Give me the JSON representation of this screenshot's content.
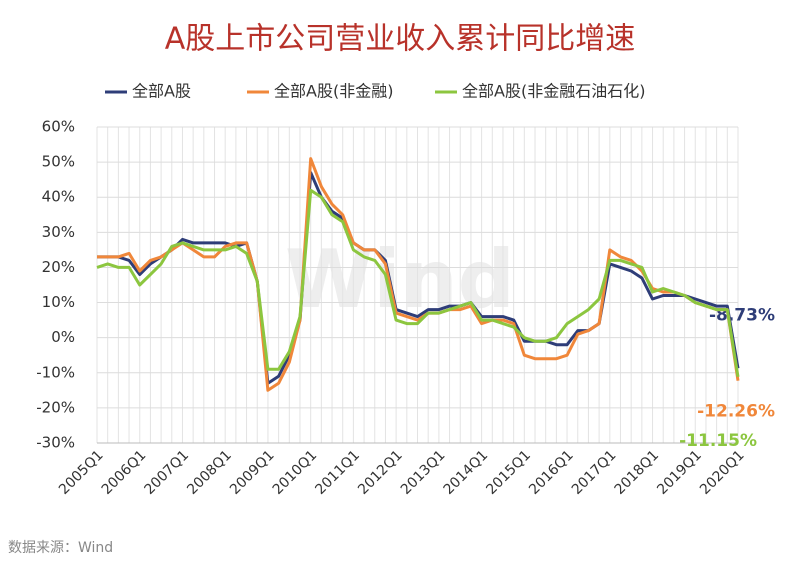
{
  "chart_data": {
    "type": "line",
    "title": "A股上市公司营业收入累计同比增速",
    "source": "数据来源：Wind",
    "watermark": "Wind",
    "categories": [
      "2005Q1",
      null,
      null,
      null,
      "2006Q1",
      null,
      null,
      null,
      "2007Q1",
      null,
      null,
      null,
      "2008Q1",
      null,
      null,
      null,
      "2009Q1",
      null,
      null,
      null,
      "2010Q1",
      null,
      null,
      null,
      "2011Q1",
      null,
      null,
      null,
      "2012Q1",
      null,
      null,
      null,
      "2013Q1",
      null,
      null,
      null,
      "2014Q1",
      null,
      null,
      null,
      "2015Q1",
      null,
      null,
      null,
      "2016Q1",
      null,
      null,
      null,
      "2017Q1",
      null,
      null,
      null,
      "2018Q1",
      null,
      null,
      null,
      "2019Q1",
      null,
      null,
      null,
      "2020Q1"
    ],
    "series": [
      {
        "name": "全部A股",
        "color": "#2e3d78",
        "values": [
          23,
          23,
          23,
          22,
          18,
          21,
          23,
          25,
          28,
          27,
          27,
          27,
          27,
          26,
          27,
          16,
          -13,
          -11,
          -5,
          5,
          47,
          40,
          36,
          34,
          27,
          25,
          25,
          22,
          8,
          7,
          6,
          8,
          8,
          9,
          9,
          10,
          6,
          6,
          6,
          5,
          -1,
          -1,
          -1,
          -2,
          -2,
          2,
          2,
          4,
          21,
          20,
          19,
          17,
          11,
          12,
          12,
          12,
          11,
          10,
          9,
          9,
          -8.73
        ],
        "value_labels": [
          null,
          null,
          null,
          null,
          null,
          null,
          null,
          null,
          null,
          null,
          null,
          null,
          null,
          null,
          null,
          null,
          null,
          null,
          null,
          null,
          null,
          null,
          null,
          null,
          null,
          null,
          null,
          null,
          null,
          null,
          null,
          null,
          null,
          null,
          null,
          null,
          null,
          null,
          null,
          null,
          null,
          null,
          null,
          null,
          null,
          null,
          null,
          null,
          null,
          null,
          null,
          null,
          null,
          null,
          null,
          null,
          null,
          null,
          null,
          null,
          "-8.73%"
        ]
      },
      {
        "name": "全部A股(非金融)",
        "color": "#f0873a",
        "values": [
          23,
          23,
          23,
          24,
          19,
          22,
          23,
          25,
          27,
          25,
          23,
          23,
          26,
          27,
          27,
          16,
          -15,
          -13,
          -7,
          5,
          51,
          43,
          38,
          35,
          27,
          25,
          25,
          21,
          7,
          6,
          5,
          7,
          7,
          8,
          8,
          9,
          4,
          5,
          5,
          4,
          -5,
          -6,
          -6,
          -6,
          -5,
          1,
          2,
          4,
          25,
          23,
          22,
          19,
          14,
          13,
          13,
          12,
          10,
          9,
          8,
          8,
          -12.26
        ],
        "value_labels": [
          null,
          null,
          null,
          null,
          null,
          null,
          null,
          null,
          null,
          null,
          null,
          null,
          null,
          null,
          null,
          null,
          null,
          null,
          null,
          null,
          null,
          null,
          null,
          null,
          null,
          null,
          null,
          null,
          null,
          null,
          null,
          null,
          null,
          null,
          null,
          null,
          null,
          null,
          null,
          null,
          null,
          null,
          null,
          null,
          null,
          null,
          null,
          null,
          null,
          null,
          null,
          null,
          null,
          null,
          null,
          null,
          null,
          null,
          null,
          null,
          "-12.26%"
        ]
      },
      {
        "name": "全部A股(非金融石油石化)",
        "color": "#8cc63f",
        "values": [
          20,
          21,
          20,
          20,
          15,
          18,
          21,
          26,
          27,
          26,
          25,
          25,
          25,
          26,
          24,
          16,
          -9,
          -9,
          -4,
          6,
          42,
          40,
          35,
          33,
          25,
          23,
          22,
          18,
          5,
          4,
          4,
          7,
          7,
          8,
          9,
          10,
          5,
          5,
          4,
          3,
          0,
          -1,
          -1,
          0,
          4,
          6,
          8,
          11,
          22,
          22,
          21,
          20,
          13,
          14,
          13,
          12,
          10,
          9,
          8,
          8,
          -11.15
        ],
        "value_labels": [
          null,
          null,
          null,
          null,
          null,
          null,
          null,
          null,
          null,
          null,
          null,
          null,
          null,
          null,
          null,
          null,
          null,
          null,
          null,
          null,
          null,
          null,
          null,
          null,
          null,
          null,
          null,
          null,
          null,
          null,
          null,
          null,
          null,
          null,
          null,
          null,
          null,
          null,
          null,
          null,
          null,
          null,
          null,
          null,
          null,
          null,
          null,
          null,
          null,
          null,
          null,
          null,
          null,
          null,
          null,
          null,
          null,
          null,
          null,
          null,
          "-11.15%"
        ]
      }
    ],
    "ylim": [
      -30,
      60
    ],
    "yticks": [
      {
        "value": -30,
        "label": "-30%"
      },
      {
        "value": -20,
        "label": "-20%"
      },
      {
        "value": -10,
        "label": "-10%"
      },
      {
        "value": 0,
        "label": "0%"
      },
      {
        "value": 10,
        "label": "10%"
      },
      {
        "value": 20,
        "label": "20%"
      },
      {
        "value": 30,
        "label": "30%"
      },
      {
        "value": 40,
        "label": "40%"
      },
      {
        "value": 50,
        "label": "50%"
      },
      {
        "value": 60,
        "label": "60%"
      }
    ],
    "grid": true,
    "legend": "top"
  }
}
